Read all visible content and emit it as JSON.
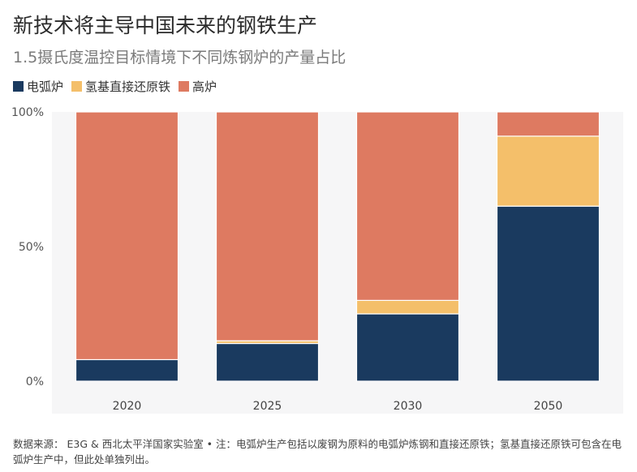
{
  "title": "新技术将主导中国未来的钢铁生产",
  "subtitle": "1.5摄氏度温控目标情境下不同炼钢炉的产量占比",
  "legend": [
    {
      "label": "电弧炉",
      "color": "#1a3a5f"
    },
    {
      "label": "氢基直接还原铁",
      "color": "#f4bf6a"
    },
    {
      "label": "高炉",
      "color": "#de7a61"
    }
  ],
  "chart_data": {
    "type": "bar",
    "stacked": true,
    "categories": [
      "2020",
      "2025",
      "2030",
      "2050"
    ],
    "series": [
      {
        "name": "电弧炉",
        "color": "#1a3a5f",
        "values": [
          8,
          14,
          25,
          65
        ]
      },
      {
        "name": "氢基直接还原铁",
        "color": "#f4bf6a",
        "values": [
          0,
          1,
          5,
          26
        ]
      },
      {
        "name": "高炉",
        "color": "#de7a61",
        "values": [
          92,
          85,
          70,
          9
        ]
      }
    ],
    "ylim": [
      0,
      100
    ],
    "yticks": [
      "0%",
      "50%",
      "100%"
    ],
    "grid": false,
    "legend_position": "top-left"
  },
  "footer": "数据来源： E3G & 西北太平洋国家实验室 • 注：电弧炉生产包括以废钢为原料的电弧炉炼钢和直接还原铁；氢基直接还原铁可包含在电弧炉生产中，但此处单独列出。"
}
